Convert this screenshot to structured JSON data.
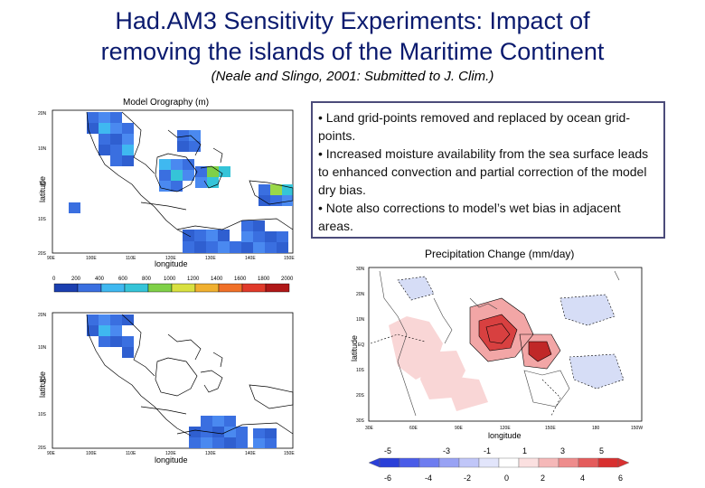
{
  "title_line1": "Had.AM3 Sensitivity Experiments: Impact of",
  "title_line2": "removing the islands of the Maritime Continent",
  "subtitle": "(Neale and Slingo, 2001: Submitted to J. Clim.)",
  "bullets": [
    "• Land grid-points removed and replaced by ocean grid-points.",
    "• Increased moisture availability from the sea surface leads to enhanced convection and partial correction of the model dry bias.",
    "• Note also corrections to model’s wet bias in adjacent areas."
  ],
  "colors": {
    "title": "#0a1a6e",
    "box_border": "#4b4b7a"
  },
  "orography_top": {
    "title": "Model Orography (m)",
    "xlabel": "longitude",
    "ylabel": "latitude",
    "yticks": [
      "20N",
      "10N",
      "EQ",
      "10S",
      "20S"
    ],
    "xticks": [
      "90E",
      "100E",
      "110E",
      "120E",
      "130E",
      "140E",
      "150E"
    ]
  },
  "colorbar": {
    "labels": [
      "0",
      "200",
      "400",
      "600",
      "800",
      "1000",
      "1200",
      "1400",
      "1600",
      "1800",
      "2000"
    ]
  },
  "orography_bottom": {
    "xlabel": "longitude",
    "ylabel": "latitude",
    "yticks": [
      "20N",
      "10N",
      "EQ",
      "10S",
      "20S"
    ],
    "xticks": [
      "90E",
      "100E",
      "110E",
      "120E",
      "130E",
      "140E",
      "150E"
    ]
  },
  "precip": {
    "title": "Precipitation Change (mm/day)",
    "xlabel": "longitude",
    "ylabel": "latitude",
    "yticks": [
      "30N",
      "20N",
      "10N",
      "EQ",
      "10S",
      "20S",
      "30S"
    ],
    "xticks": [
      "30E",
      "60E",
      "90E",
      "120E",
      "150E",
      "180",
      "150W"
    ],
    "colorbar_top": [
      "-5",
      "-3",
      "-1",
      "1",
      "3",
      "5"
    ],
    "colorbar_bottom": [
      "-6",
      "-4",
      "-2",
      "0",
      "2",
      "4",
      "6"
    ]
  }
}
